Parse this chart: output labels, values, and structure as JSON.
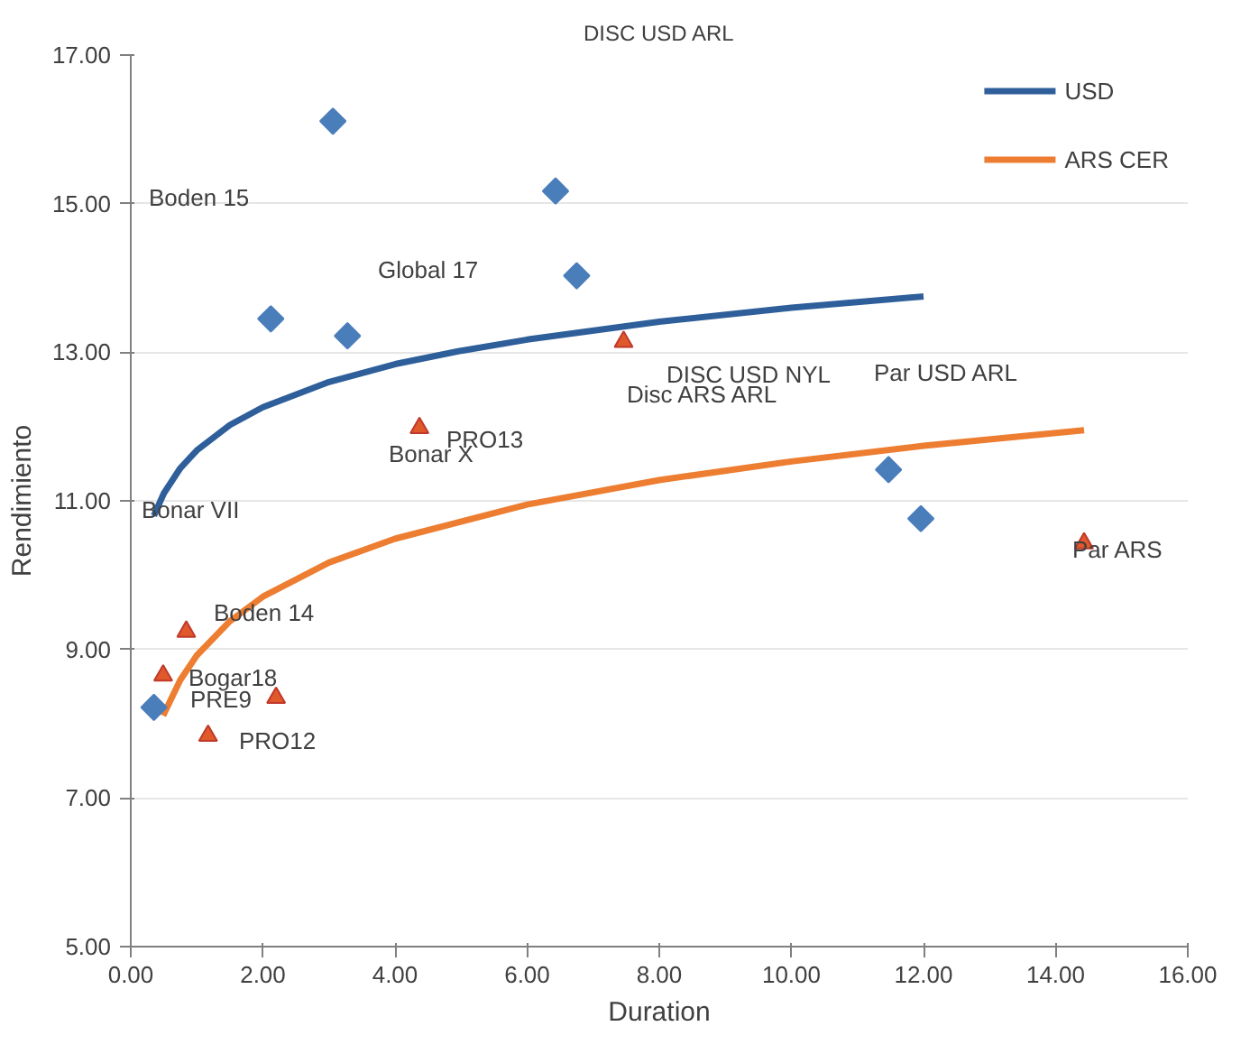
{
  "chart_data": {
    "type": "scatter",
    "title": "DISC USD ARL",
    "xlabel": "Duration",
    "ylabel": "Rendimiento",
    "series": [
      {
        "marker": "diamond",
        "color": "#4a7ebb",
        "x": [
          3.06,
          6.43,
          6.75,
          2.12,
          3.28,
          11.47,
          11.96,
          0.35
        ],
        "values": [
          16.11,
          15.17,
          14.03,
          13.45,
          13.22,
          11.42,
          10.76,
          8.22
        ]
      },
      {
        "marker": "triangle",
        "color": "#e0592a",
        "x": [
          4.37,
          7.46,
          0.84,
          0.49,
          2.2,
          1.17,
          14.43
        ],
        "values": [
          11.98,
          13.14,
          9.24,
          8.65,
          8.35,
          7.84,
          10.43
        ]
      },
      {
        "type": "line",
        "name": "USD",
        "color": "#2e5f9a",
        "x": [
          0.35,
          0.5,
          0.75,
          1,
          1.5,
          2,
          3,
          4,
          5,
          6,
          8,
          10,
          12
        ],
        "values": [
          10.8,
          11.1,
          11.44,
          11.68,
          12.02,
          12.26,
          12.6,
          12.84,
          13.02,
          13.17,
          13.41,
          13.6,
          13.75
        ]
      },
      {
        "type": "line",
        "name": "ARS CER",
        "color": "#ed7d31",
        "x": [
          0.49,
          0.75,
          1,
          1.5,
          2,
          3,
          4,
          6,
          8,
          10,
          12,
          14.43
        ],
        "values": [
          8.11,
          8.59,
          8.92,
          9.38,
          9.71,
          10.17,
          10.49,
          10.95,
          11.28,
          11.53,
          11.74,
          11.95
        ]
      }
    ],
    "annotations": [
      "Boden 15",
      "Global 17",
      "Bonar VII",
      "Bonar X",
      "PRO13",
      "DISC USD NYL",
      "Disc ARS ARL",
      "Par USD ARL",
      "Par ARS",
      "Boden 14",
      "Bogar18",
      "PRE9",
      "PRO12"
    ],
    "xlim": [
      0,
      16
    ],
    "xticks": [
      {
        "value": 0,
        "label": "0.00"
      },
      {
        "value": 2,
        "label": "2.00"
      },
      {
        "value": 4,
        "label": "4.00"
      },
      {
        "value": 6,
        "label": "6.00"
      },
      {
        "value": 8,
        "label": "8.00"
      },
      {
        "value": 10,
        "label": "10.00"
      },
      {
        "value": 12,
        "label": "12.00"
      },
      {
        "value": 14,
        "label": "14.00"
      },
      {
        "value": 16,
        "label": "16.00"
      }
    ],
    "ylim": [
      5,
      17
    ],
    "yticks": [
      {
        "value": 5,
        "label": "5.00"
      },
      {
        "value": 7,
        "label": "7.00"
      },
      {
        "value": 9,
        "label": "9.00"
      },
      {
        "value": 11,
        "label": "11.00"
      },
      {
        "value": 13,
        "label": "13.00"
      },
      {
        "value": 15,
        "label": "15.00"
      },
      {
        "value": 17,
        "label": "17.00"
      }
    ],
    "grid": "y",
    "legend": "top right"
  }
}
